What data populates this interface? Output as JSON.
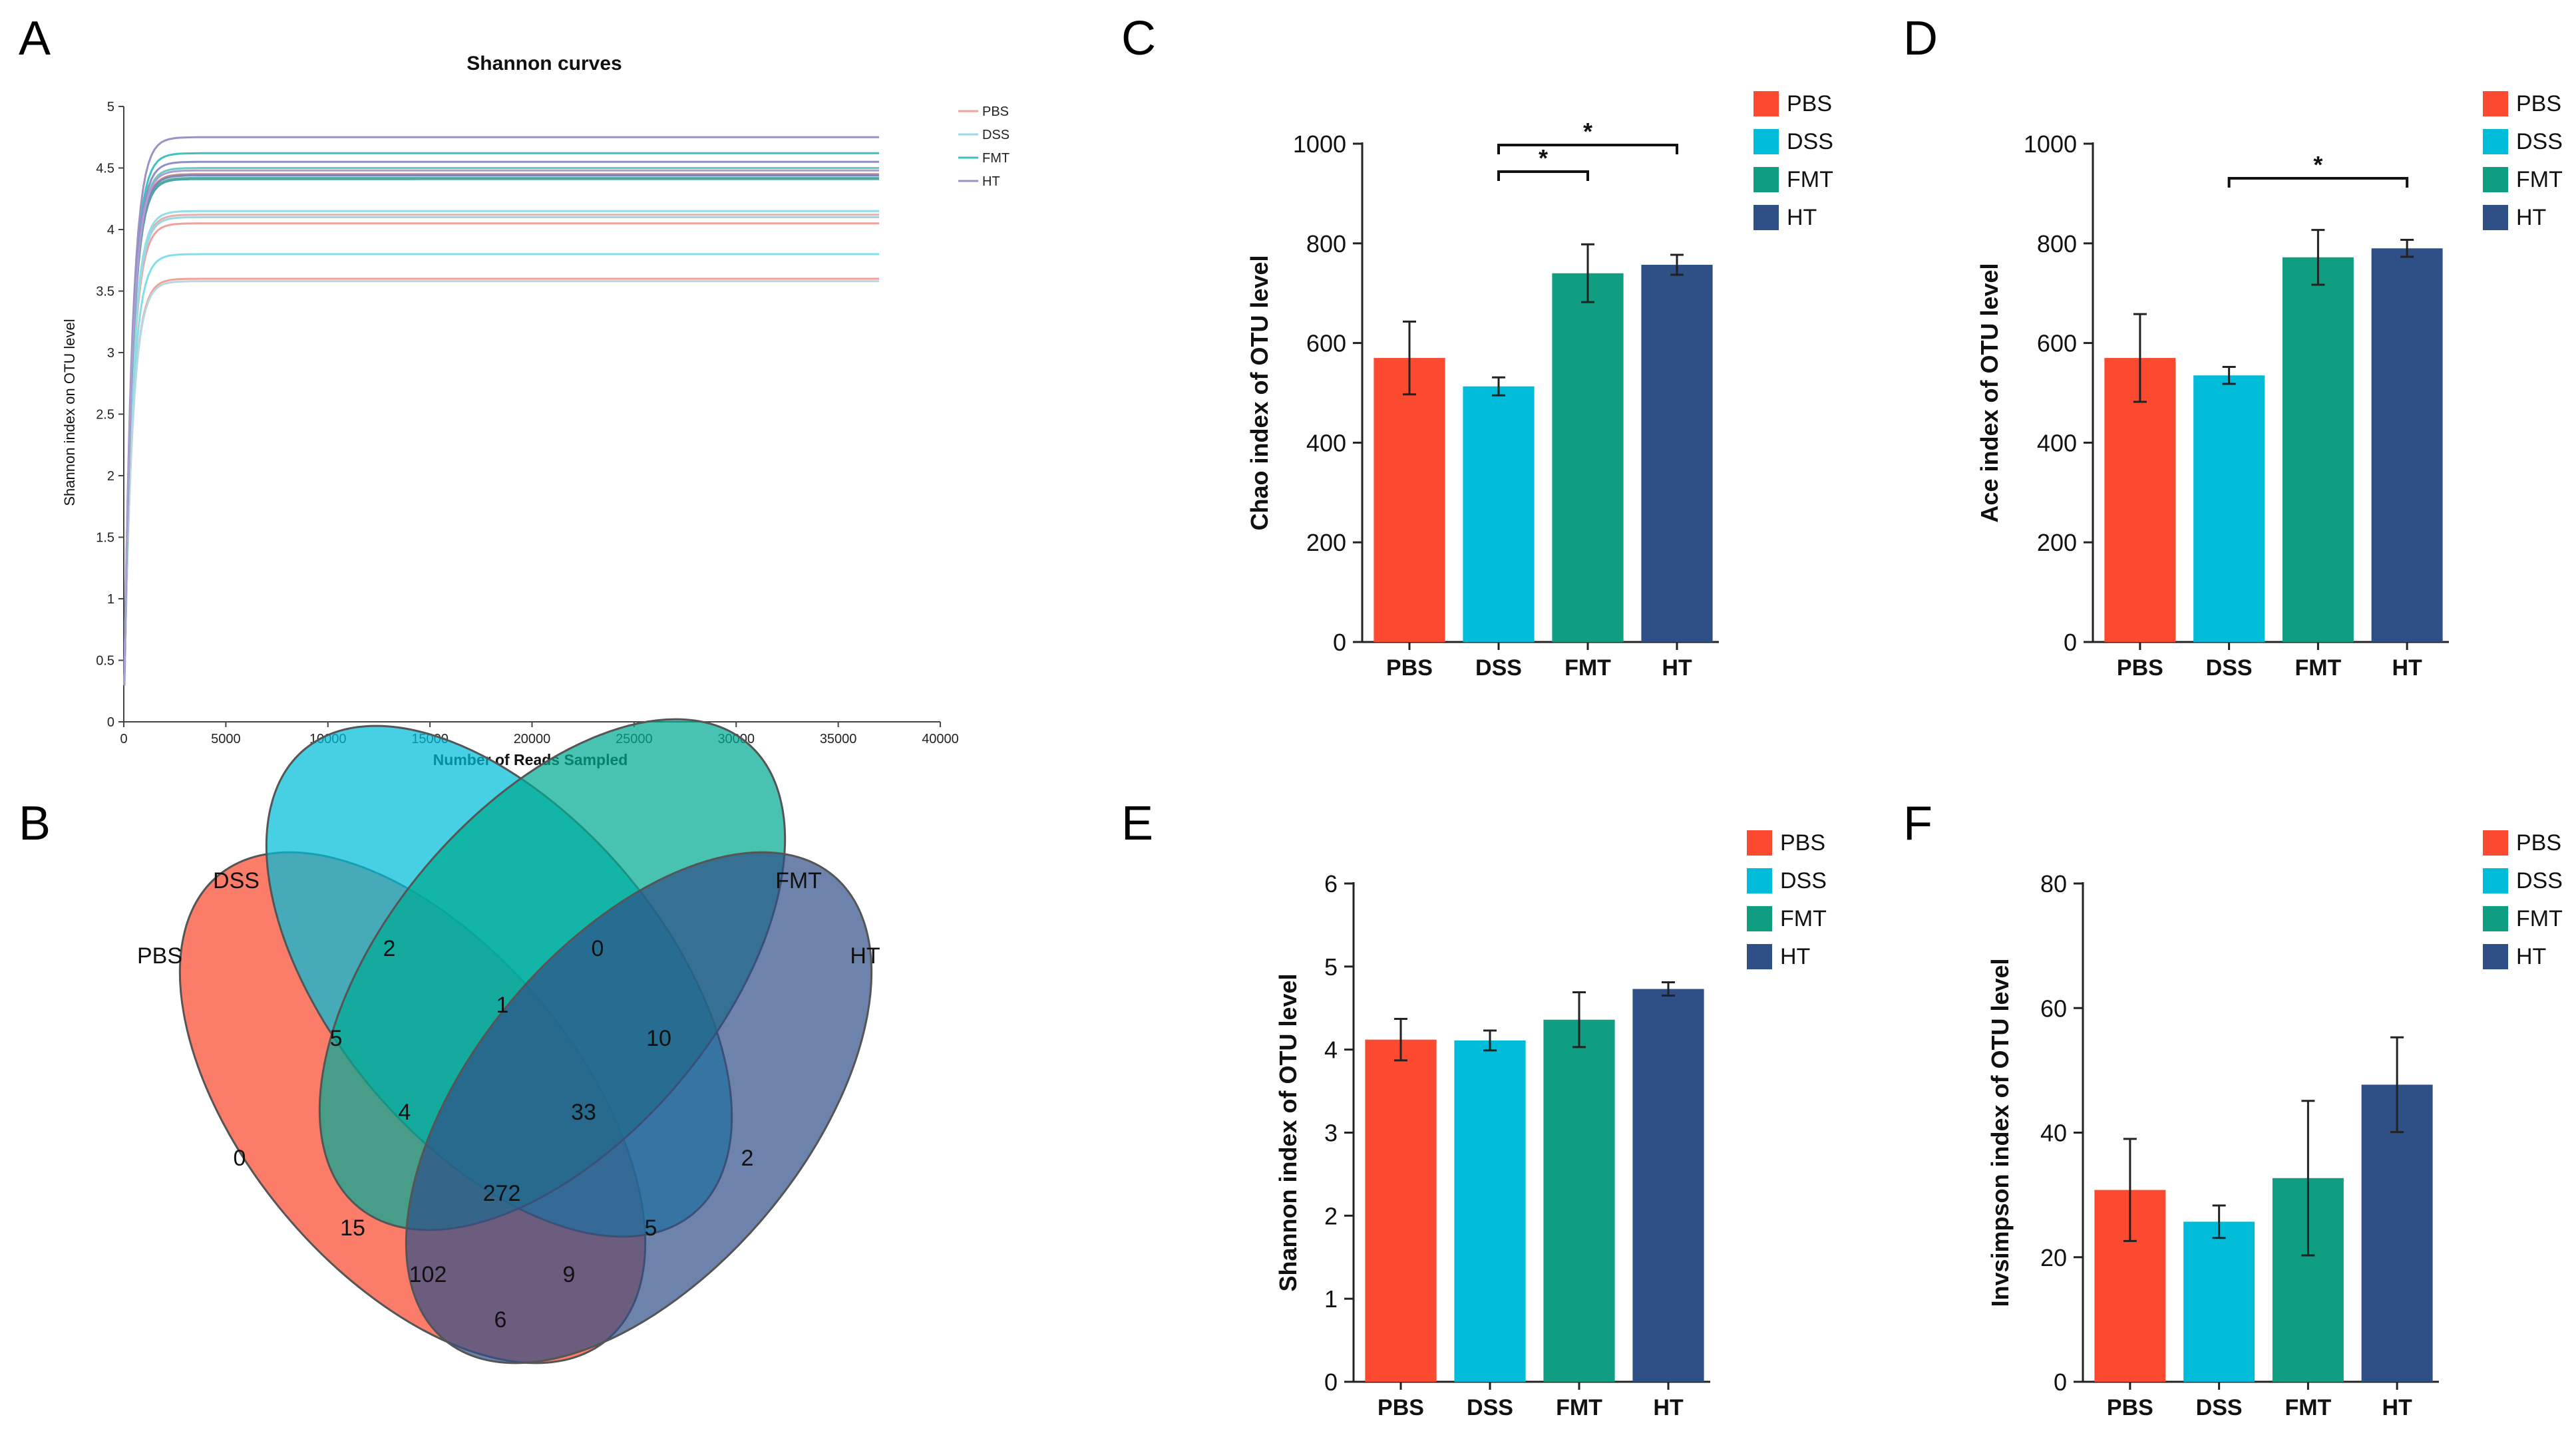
{
  "panels": {
    "A": "A",
    "B": "B",
    "C": "C",
    "D": "D",
    "E": "E",
    "F": "F"
  },
  "colors": {
    "PBS": "#fb4a30",
    "DSS": "#00bcd8",
    "FMT": "#0f9e82",
    "HT": "#2f4f87"
  },
  "chart_data": [
    {
      "id": "A",
      "type": "line",
      "title": "Shannon curves",
      "xlabel": "Number of Reads Sampled",
      "ylabel": "Shannon index on OTU level",
      "xlim": [
        0,
        40000
      ],
      "ylim": [
        0,
        5
      ],
      "xticks": [
        "0",
        "5000",
        "10000",
        "15000",
        "20000",
        "25000",
        "30000",
        "35000",
        "40000"
      ],
      "yticks": [
        "0",
        "0.5",
        "1",
        "1.5",
        "2",
        "2.5",
        "3",
        "3.5",
        "4",
        "4.5",
        "5"
      ],
      "legend": [
        "PBS",
        "DSS",
        "FMT",
        "HT"
      ],
      "x_end": 37000,
      "series": [
        {
          "group": "PBS",
          "color": "#f1a09a",
          "plateau": 4.05
        },
        {
          "group": "PBS",
          "color": "#f1a09a",
          "plateau": 3.6
        },
        {
          "group": "PBS",
          "color": "#c98b8a",
          "plateau": 4.45
        },
        {
          "group": "PBS",
          "color": "#e3b0b0",
          "plateau": 4.12
        },
        {
          "group": "DSS",
          "color": "#7fe0e8",
          "plateau": 3.8
        },
        {
          "group": "DSS",
          "color": "#8edfe6",
          "plateau": 4.15
        },
        {
          "group": "DSS",
          "color": "#9ad9e3",
          "plateau": 4.1
        },
        {
          "group": "DSS",
          "color": "#b7d8e0",
          "plateau": 3.58
        },
        {
          "group": "FMT",
          "color": "#3cc3c0",
          "plateau": 4.62
        },
        {
          "group": "FMT",
          "color": "#5fb0ad",
          "plateau": 4.42
        },
        {
          "group": "FMT",
          "color": "#6bc8c2",
          "plateau": 4.5
        },
        {
          "group": "FMT",
          "color": "#4aa7a4",
          "plateau": 4.41
        },
        {
          "group": "HT",
          "color": "#9d90c6",
          "plateau": 4.75
        },
        {
          "group": "HT",
          "color": "#8f8fc2",
          "plateau": 4.55
        },
        {
          "group": "HT",
          "color": "#7e86b7",
          "plateau": 4.44
        },
        {
          "group": "HT",
          "color": "#aaa0cf",
          "plateau": 4.48
        }
      ]
    },
    {
      "id": "B",
      "type": "venn",
      "sets": [
        "PBS",
        "DSS",
        "FMT",
        "HT"
      ],
      "regions": [
        {
          "key": "DSS",
          "value": "2"
        },
        {
          "key": "FMT",
          "value": "0"
        },
        {
          "key": "PBS",
          "value": "0"
        },
        {
          "key": "HT",
          "value": "2"
        },
        {
          "key": "PBS-DSS",
          "value": "5"
        },
        {
          "key": "DSS-FMT",
          "value": "1"
        },
        {
          "key": "FMT-HT",
          "value": "10"
        },
        {
          "key": "PBS-DSS-FMT",
          "value": "4"
        },
        {
          "key": "DSS-FMT-HT",
          "value": "33"
        },
        {
          "key": "ALL",
          "value": "272"
        },
        {
          "key": "PBS-FMT",
          "value": "15"
        },
        {
          "key": "DSS-HT",
          "value": "5"
        },
        {
          "key": "PBS-FMT-HT",
          "value": "102"
        },
        {
          "key": "PBS-DSS-HT",
          "value": "9"
        },
        {
          "key": "PBS-HT",
          "value": "6"
        }
      ]
    },
    {
      "id": "C",
      "type": "bar",
      "categories": [
        "PBS",
        "DSS",
        "FMT",
        "HT"
      ],
      "values": [
        570,
        513,
        740,
        757
      ],
      "errors": [
        73,
        18,
        58,
        20
      ],
      "ylabel": "Chao index of OTU level",
      "ylim": [
        0,
        1000
      ],
      "yticks": [
        "0",
        "200",
        "400",
        "600",
        "800",
        "1000"
      ],
      "legend": [
        "PBS",
        "DSS",
        "FMT",
        "HT"
      ],
      "significance": [
        {
          "from": 1,
          "to": 2,
          "label": "*",
          "level": 1
        },
        {
          "from": 1,
          "to": 3,
          "label": "*",
          "level": 2
        }
      ]
    },
    {
      "id": "D",
      "type": "bar",
      "categories": [
        "PBS",
        "DSS",
        "FMT",
        "HT"
      ],
      "values": [
        570,
        535,
        772,
        790
      ],
      "errors": [
        88,
        17,
        55,
        17
      ],
      "ylabel": "Ace index of OTU level",
      "ylim": [
        0,
        1000
      ],
      "yticks": [
        "0",
        "200",
        "400",
        "600",
        "800",
        "1000"
      ],
      "legend": [
        "PBS",
        "DSS",
        "FMT",
        "HT"
      ],
      "significance": [
        {
          "from": 1,
          "to": 3,
          "label": "*",
          "level": 1
        }
      ]
    },
    {
      "id": "E",
      "type": "bar",
      "categories": [
        "PBS",
        "DSS",
        "FMT",
        "HT"
      ],
      "values": [
        4.12,
        4.11,
        4.36,
        4.73
      ],
      "errors": [
        0.25,
        0.12,
        0.33,
        0.08
      ],
      "ylabel": "Shannon index of OTU level",
      "ylim": [
        0,
        6
      ],
      "yticks": [
        "0",
        "1",
        "2",
        "3",
        "4",
        "5",
        "6"
      ],
      "legend": [
        "PBS",
        "DSS",
        "FMT",
        "HT"
      ],
      "significance": []
    },
    {
      "id": "F",
      "type": "bar",
      "categories": [
        "PBS",
        "DSS",
        "FMT",
        "HT"
      ],
      "values": [
        30.8,
        25.7,
        32.7,
        47.7
      ],
      "errors": [
        8.2,
        2.6,
        12.4,
        7.6
      ],
      "ylabel": "Invsimpson index of OTU level",
      "ylim": [
        0,
        80
      ],
      "yticks": [
        "0",
        "20",
        "40",
        "60",
        "80"
      ],
      "legend": [
        "PBS",
        "DSS",
        "FMT",
        "HT"
      ],
      "significance": []
    }
  ]
}
